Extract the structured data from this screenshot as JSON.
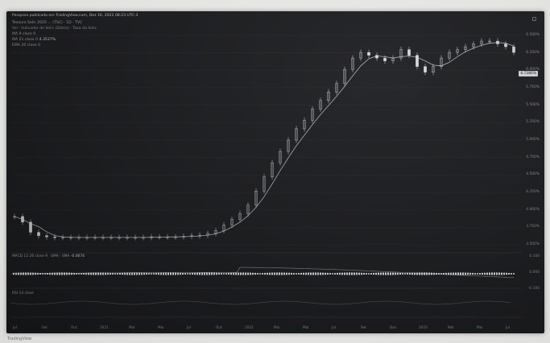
{
  "window": {
    "top_line": "Pesquisa publicada em TradingView.com, Dez 16, 2022 08:23 UTC-3",
    "symbol_line": "Tesouro Selic 2025 ... (TSC) · 1D · TVC",
    "indicator_line": "Vol · Indicador de Selic (Diário) · Taxa da Selic",
    "ma1_label": "MA 9 close 0",
    "ma2_label": "MA 21 close 0",
    "ma2_value": "4.3537%",
    "ema_label": "EMA 20 close 0"
  },
  "price_axis": {
    "labels": [
      "6.500%",
      "6.250%",
      "6.000%",
      "5.750%",
      "5.500%",
      "5.250%",
      "5.000%",
      "4.750%",
      "4.500%",
      "4.250%",
      "4.000%",
      "3.750%",
      "3.500%"
    ],
    "current_value": "6.7386%"
  },
  "oscillator": {
    "macd_label": "MACD 12 26 close 9 · SMA · SMA",
    "macd_value": "-0.0674",
    "axis_labels": [
      "0.100",
      "0.000",
      "-0.100"
    ],
    "rsi_label": "RSI 14 close"
  },
  "time_axis": {
    "labels": [
      "Jul",
      "Set",
      "Out",
      "2021",
      "Mar",
      "Mai",
      "Jul",
      "Out",
      "2022",
      "Mar",
      "Mai",
      "Jul",
      "Set",
      "Dez",
      "2023",
      "Mar",
      "Mai",
      "Jul"
    ]
  },
  "footer": {
    "brand": "TradingView"
  },
  "colors": {
    "background": "#1a1b1e",
    "candle": "#d9dadc",
    "ma_line": "#b0b2b6",
    "grid": "#2b2c30"
  },
  "chart_data": {
    "type": "line",
    "title": "",
    "xlabel": "",
    "ylabel": "",
    "series": [
      {
        "name": "",
        "x": [
          0,
          10,
          20,
          30,
          40,
          50,
          60,
          70,
          80,
          90,
          100,
          110,
          120,
          130,
          140,
          150,
          160,
          170,
          180,
          190,
          200,
          210,
          220,
          230,
          240,
          250,
          260,
          270,
          280,
          290,
          300,
          310,
          320,
          330,
          340,
          350,
          360,
          370,
          380,
          390,
          400,
          410,
          420,
          430,
          440,
          450,
          460,
          470,
          480,
          490,
          500,
          510,
          520,
          530,
          540,
          550,
          560,
          570,
          580,
          590,
          600,
          610,
          620
        ],
        "values": [
          4.0,
          3.9,
          3.72,
          3.66,
          3.64,
          3.63,
          3.63,
          3.63,
          3.63,
          3.63,
          3.63,
          3.63,
          3.63,
          3.63,
          3.63,
          3.63,
          3.63,
          3.64,
          3.64,
          3.64,
          3.64,
          3.65,
          3.66,
          3.67,
          3.7,
          3.75,
          3.85,
          3.95,
          4.05,
          4.2,
          4.45,
          4.7,
          4.95,
          5.15,
          5.35,
          5.55,
          5.7,
          5.9,
          6.05,
          6.2,
          6.35,
          6.6,
          6.8,
          6.9,
          6.85,
          6.8,
          6.75,
          6.8,
          6.95,
          6.85,
          6.65,
          6.55,
          6.65,
          6.8,
          6.9,
          6.95,
          7.0,
          7.05,
          7.1,
          7.1,
          7.05,
          7.0,
          6.9
        ]
      }
    ],
    "ylim": [
      3.5,
      7.2
    ],
    "grid": true,
    "legend": "none"
  }
}
